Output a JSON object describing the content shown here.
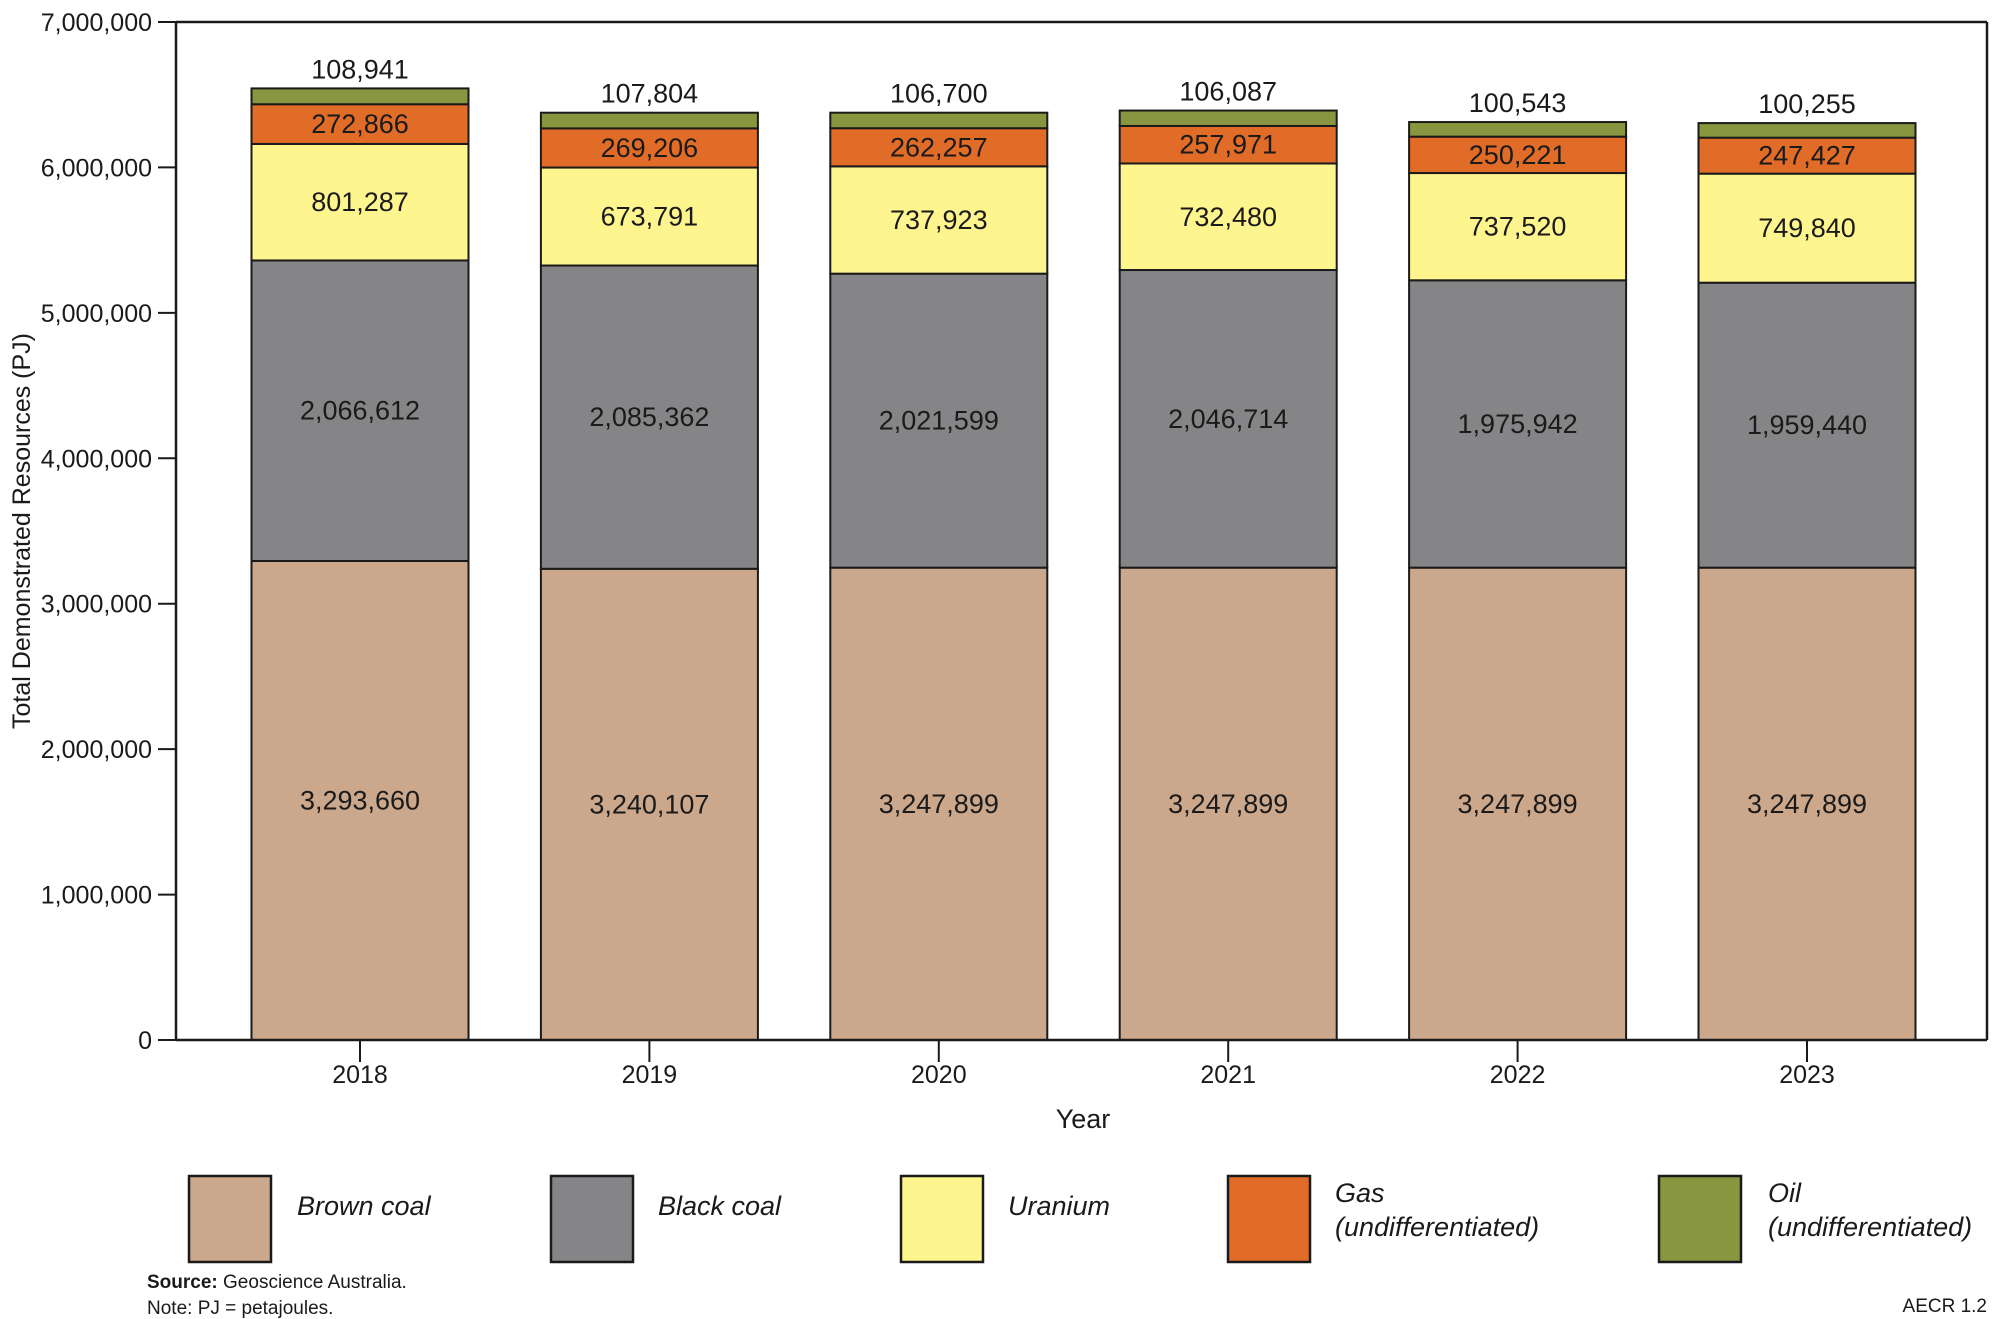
{
  "chart_data": {
    "type": "bar",
    "stacked": true,
    "title": "",
    "xlabel": "Year",
    "ylabel": "Total Demonstrated Resources (PJ)",
    "ylim": [
      0,
      7000000
    ],
    "yticks": [
      0,
      1000000,
      2000000,
      3000000,
      4000000,
      5000000,
      6000000,
      7000000
    ],
    "ytick_labels": [
      "0",
      "1,000,000",
      "2,000,000",
      "3,000,000",
      "4,000,000",
      "5,000,000",
      "6,000,000",
      "7,000,000"
    ],
    "grid": false,
    "legend_position": "bottom",
    "categories": [
      "2018",
      "2019",
      "2020",
      "2021",
      "2022",
      "2023"
    ],
    "series": [
      {
        "name": "Brown coal",
        "color": "#cba88c",
        "values": [
          3293660,
          3240107,
          3247899,
          3247899,
          3247899,
          3247899
        ],
        "labels": [
          "3,293,660",
          "3,240,107",
          "3,247,899",
          "3,247,899",
          "3,247,899",
          "3,247,899"
        ]
      },
      {
        "name": "Black coal",
        "color": "#858587",
        "values": [
          2066612,
          2085362,
          2021599,
          2046714,
          1975942,
          1959440
        ],
        "labels": [
          "2,066,612",
          "2,085,362",
          "2,021,599",
          "2,046,714",
          "1,975,942",
          "1,959,440"
        ]
      },
      {
        "name": "Uranium",
        "color": "#fef58f",
        "values": [
          801287,
          673791,
          737923,
          732480,
          737520,
          749840
        ],
        "labels": [
          "801,287",
          "673,791",
          "737,923",
          "732,480",
          "737,520",
          "749,840"
        ]
      },
      {
        "name": "Gas",
        "name_line2": "(undifferentiated)",
        "color": "#e06c27",
        "values": [
          272866,
          269206,
          262257,
          257971,
          250221,
          247427
        ],
        "labels": [
          "272,866",
          "269,206",
          "262,257",
          "257,971",
          "250,221",
          "247,427"
        ]
      },
      {
        "name": "Oil",
        "name_line2": "(undifferentiated)",
        "color": "#87963f",
        "values": [
          108941,
          107804,
          106700,
          106087,
          100543,
          100255
        ],
        "labels": [
          "108,941",
          "107,804",
          "106,700",
          "106,087",
          "100,543",
          "100,255"
        ]
      }
    ]
  },
  "footer": {
    "source_label": "Source:",
    "source_text": " Geoscience Australia.",
    "note": "Note: PJ = petajoules.",
    "figure_id": "AECR 1.2"
  }
}
